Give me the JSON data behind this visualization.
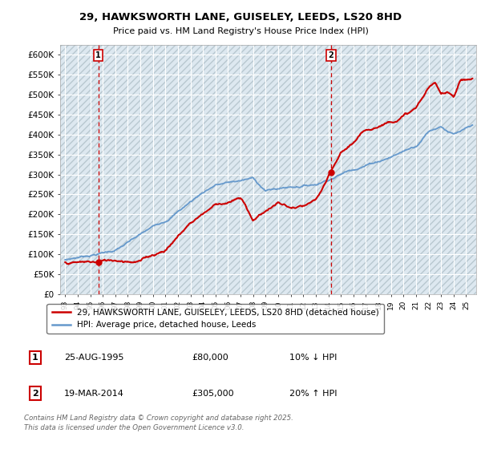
{
  "title_line1": "29, HAWKSWORTH LANE, GUISELEY, LEEDS, LS20 8HD",
  "title_line2": "Price paid vs. HM Land Registry's House Price Index (HPI)",
  "ylabel_ticks": [
    "£0",
    "£50K",
    "£100K",
    "£150K",
    "£200K",
    "£250K",
    "£300K",
    "£350K",
    "£400K",
    "£450K",
    "£500K",
    "£550K",
    "£600K"
  ],
  "ytick_vals": [
    0,
    50000,
    100000,
    150000,
    200000,
    250000,
    300000,
    350000,
    400000,
    450000,
    500000,
    550000,
    600000
  ],
  "ylim": [
    0,
    625000
  ],
  "xlim_start": 1992.6,
  "xlim_end": 2025.8,
  "sale1_x": 1995.65,
  "sale1_y": 80000,
  "sale1_label": "1",
  "sale2_x": 2014.22,
  "sale2_y": 305000,
  "sale2_label": "2",
  "red_line_color": "#cc0000",
  "blue_line_color": "#6699cc",
  "background_color": "#dde8f0",
  "grid_color": "#ffffff",
  "legend_entry1": "29, HAWKSWORTH LANE, GUISELEY, LEEDS, LS20 8HD (detached house)",
  "legend_entry2": "HPI: Average price, detached house, Leeds",
  "note1_box": "1",
  "note1_date": "25-AUG-1995",
  "note1_price": "£80,000",
  "note1_hpi": "10% ↓ HPI",
  "note2_box": "2",
  "note2_date": "19-MAR-2014",
  "note2_price": "£305,000",
  "note2_hpi": "20% ↑ HPI",
  "footer": "Contains HM Land Registry data © Crown copyright and database right 2025.\nThis data is licensed under the Open Government Licence v3.0.",
  "xtick_years": [
    1993,
    1994,
    1995,
    1996,
    1997,
    1998,
    1999,
    2000,
    2001,
    2002,
    2003,
    2004,
    2005,
    2006,
    2007,
    2008,
    2009,
    2010,
    2011,
    2012,
    2013,
    2014,
    2015,
    2016,
    2017,
    2018,
    2019,
    2020,
    2021,
    2022,
    2023,
    2024,
    2025
  ]
}
